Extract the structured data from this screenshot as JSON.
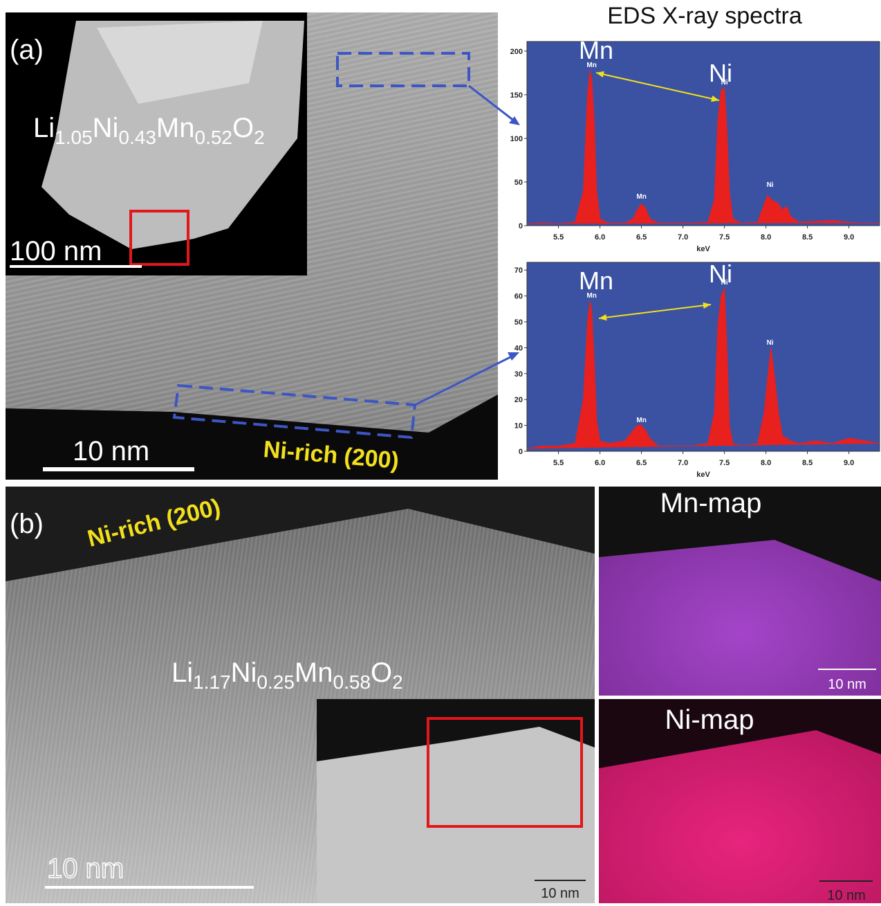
{
  "title": "EDS X-ray spectra",
  "panel_a": {
    "label": "(a)",
    "formula": [
      "Li",
      "1.05",
      "Ni",
      "0.43",
      "Mn",
      "0.52",
      "O",
      "2"
    ],
    "inset_scale": "100 nm",
    "scale": "10 nm",
    "annotation": "Ni-rich (200)"
  },
  "panel_b": {
    "label": "(b)",
    "annotation": "Ni-rich (200)",
    "formula": [
      "Li",
      "1.17",
      "Ni",
      "0.25",
      "Mn",
      "0.58",
      "O",
      "2"
    ],
    "scale": "10 nm",
    "inset_scale": "10 nm",
    "mn_map": "Mn-map",
    "mn_scale": "10 nm",
    "ni_map": "Ni-map",
    "ni_scale": "10 nm"
  },
  "chart_data": [
    {
      "type": "area",
      "xlabel": "keV",
      "color": "#e8201e",
      "background": "#3b52a3",
      "x": [
        5.12,
        5.3,
        5.5,
        5.7,
        5.8,
        5.85,
        5.88,
        5.9,
        5.93,
        5.96,
        6.0,
        6.1,
        6.3,
        6.4,
        6.45,
        6.5,
        6.55,
        6.6,
        6.7,
        6.9,
        7.1,
        7.3,
        7.38,
        7.42,
        7.46,
        7.5,
        7.53,
        7.56,
        7.6,
        7.7,
        7.9,
        7.98,
        8.02,
        8.06,
        8.1,
        8.15,
        8.2,
        8.25,
        8.3,
        8.4,
        8.6,
        8.8,
        9.0,
        9.2,
        9.37
      ],
      "values": [
        2,
        3,
        2,
        4,
        40,
        150,
        178,
        170,
        120,
        40,
        8,
        3,
        3,
        8,
        18,
        25,
        20,
        8,
        3,
        3,
        3,
        4,
        30,
        120,
        155,
        158,
        110,
        40,
        8,
        3,
        4,
        25,
        35,
        30,
        28,
        25,
        18,
        22,
        10,
        4,
        5,
        6,
        4,
        3,
        3
      ],
      "xlim": [
        5.12,
        9.37
      ],
      "ylim": [
        0,
        211
      ],
      "xticks": [
        5.5,
        {
          "value": 6.0,
          "label": "6.0"
        },
        6.5,
        {
          "value": 7.0,
          "label": "7.0"
        },
        7.5,
        {
          "value": 8.0,
          "label": "8.0"
        },
        8.5,
        {
          "value": 9.0,
          "label": "9.0"
        }
      ],
      "yticks": [
        0,
        50,
        100,
        150,
        200
      ],
      "annotations": [
        "Mn",
        "Ni"
      ],
      "peak_labels": [
        "Mn",
        "Mn",
        "Ni",
        "Ni"
      ]
    },
    {
      "type": "area",
      "xlabel": "keV",
      "color": "#e8201e",
      "background": "#3b52a3",
      "x": [
        5.12,
        5.3,
        5.5,
        5.7,
        5.8,
        5.85,
        5.88,
        5.9,
        5.93,
        5.96,
        6.0,
        6.1,
        6.3,
        6.4,
        6.45,
        6.5,
        6.55,
        6.6,
        6.7,
        6.9,
        7.1,
        7.3,
        7.38,
        7.42,
        7.46,
        7.5,
        7.53,
        7.56,
        7.6,
        7.7,
        7.9,
        7.98,
        8.02,
        8.06,
        8.1,
        8.15,
        8.2,
        8.25,
        8.3,
        8.4,
        8.6,
        8.8,
        9.0,
        9.2,
        9.37
      ],
      "values": [
        1,
        2,
        2,
        3,
        20,
        50,
        58,
        55,
        35,
        12,
        4,
        3,
        4,
        8,
        10,
        10,
        8,
        5,
        2,
        2,
        2,
        3,
        15,
        48,
        60,
        63,
        40,
        10,
        3,
        2,
        3,
        15,
        28,
        40,
        30,
        15,
        6,
        5,
        4,
        3,
        4,
        3,
        5,
        4,
        3
      ],
      "xlim": [
        5.12,
        9.37
      ],
      "ylim": [
        0,
        73
      ],
      "xticks": [
        5.5,
        {
          "value": 6.0,
          "label": "6.0"
        },
        6.5,
        {
          "value": 7.0,
          "label": "7.0"
        },
        7.5,
        {
          "value": 8.0,
          "label": "8.0"
        },
        8.5,
        {
          "value": 9.0,
          "label": "9.0"
        }
      ],
      "yticks": [
        0,
        10,
        20,
        30,
        40,
        50,
        60,
        70
      ],
      "annotations": [
        "Mn",
        "Ni"
      ],
      "peak_labels": [
        "Mn",
        "Mn",
        "Ni",
        "Ni"
      ]
    }
  ]
}
